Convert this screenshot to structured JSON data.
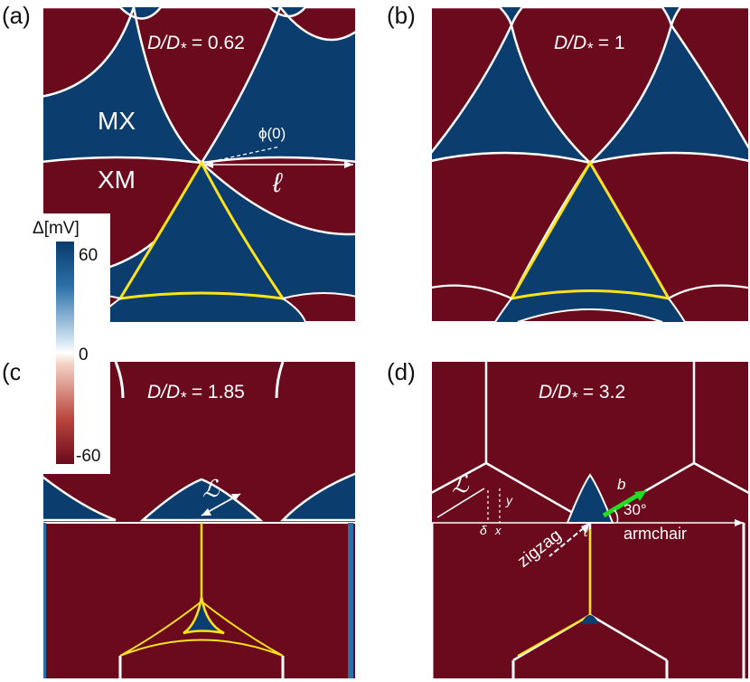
{
  "panel_labels": [
    "(a)",
    "(b)",
    "(c)",
    "(d)"
  ],
  "ratios": {
    "a": "= 0.62",
    "b": "= 1",
    "c": "= 1.85",
    "d": "= 3.2"
  },
  "ratio_prefix": "D/D",
  "ratio_sub": "*",
  "annotations": {
    "mx": "MX",
    "xm": "XM",
    "phi": "ϕ(0)",
    "ell": "ℓ",
    "script_l": "ℒ",
    "b": "b",
    "y": "y",
    "x": "x",
    "delta": "δ",
    "zero": "0",
    "zigzag": "zigzag",
    "ell_small": "ℓ",
    "angle": "30°",
    "armchair": "armchair"
  },
  "colorbar": {
    "title": "Δ[mV]",
    "ticks": [
      "60",
      "0",
      "-60"
    ],
    "max": 60,
    "min": -60
  },
  "colors": {
    "positive": "#0b3d6e",
    "negative": "#6a0a1c",
    "wall_highlight": "#ffe21a",
    "arrow_green": "#22dd22"
  }
}
